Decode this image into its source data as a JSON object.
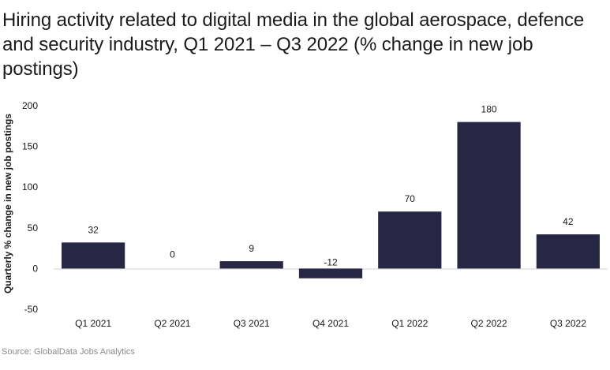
{
  "chart_data": {
    "type": "bar",
    "title": "Hiring activity related to digital media in the global aerospace, defence and security industry, Q1 2021 – Q3 2022 (% change in new job postings)",
    "xlabel": "",
    "ylabel": "Quarterly % change in new job postings",
    "categories": [
      "Q1 2021",
      "Q2 2021",
      "Q3 2021",
      "Q4 2021",
      "Q1 2022",
      "Q2 2022",
      "Q3 2022"
    ],
    "values": [
      32,
      0,
      9,
      -12,
      70,
      180,
      42
    ],
    "data_labels": [
      "32",
      "0",
      "9",
      "-12",
      "70",
      "180",
      "42"
    ],
    "yticks": [
      200,
      150,
      100,
      50,
      0,
      -50
    ],
    "ytick_labels": [
      "200",
      "150",
      "100",
      "50",
      "0",
      "-50"
    ],
    "ylim": [
      -50,
      200
    ],
    "grid": false,
    "bar_color": "#272744",
    "source": "Source: GlobalData Jobs Analytics"
  }
}
